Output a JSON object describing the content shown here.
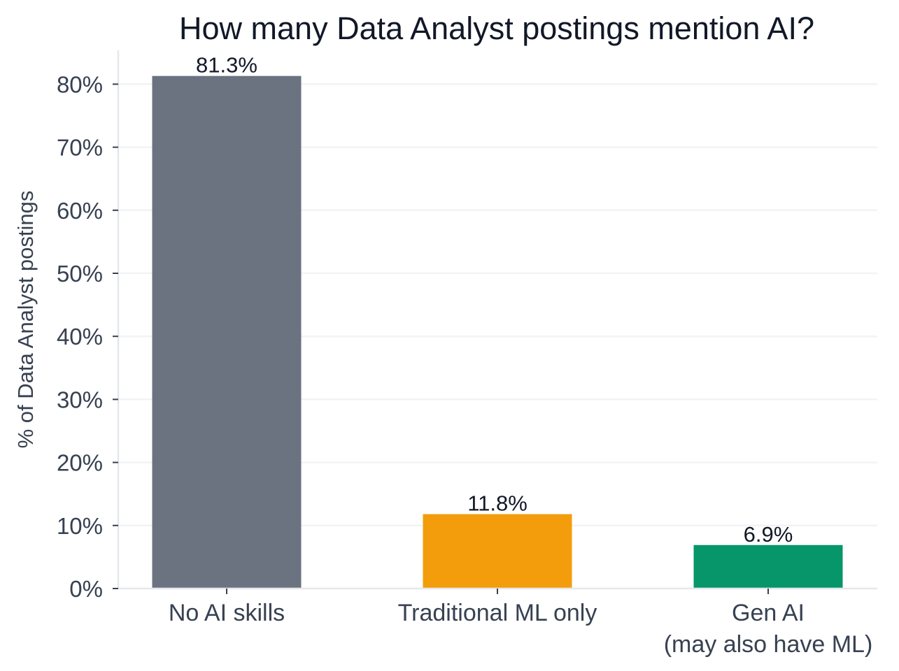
{
  "chart_data": {
    "type": "bar",
    "title": "How many Data Analyst postings mention AI?",
    "ylabel": "% of Data Analyst postings",
    "xlabel": "",
    "categories": [
      [
        "No AI skills"
      ],
      [
        "Traditional ML only"
      ],
      [
        "Gen AI",
        "(may also have ML)"
      ]
    ],
    "values": [
      81.3,
      11.8,
      6.9
    ],
    "value_labels": [
      "81.3%",
      "11.8%",
      "6.9%"
    ],
    "colors": [
      "#6b7280",
      "#f39c0c",
      "#079669"
    ],
    "ylim": [
      0,
      85
    ],
    "yticks": [
      0,
      10,
      20,
      30,
      40,
      50,
      60,
      70,
      80
    ],
    "ytick_labels": [
      "0%",
      "10%",
      "20%",
      "30%",
      "40%",
      "50%",
      "60%",
      "70%",
      "80%"
    ],
    "grid": true,
    "legend": "none"
  }
}
